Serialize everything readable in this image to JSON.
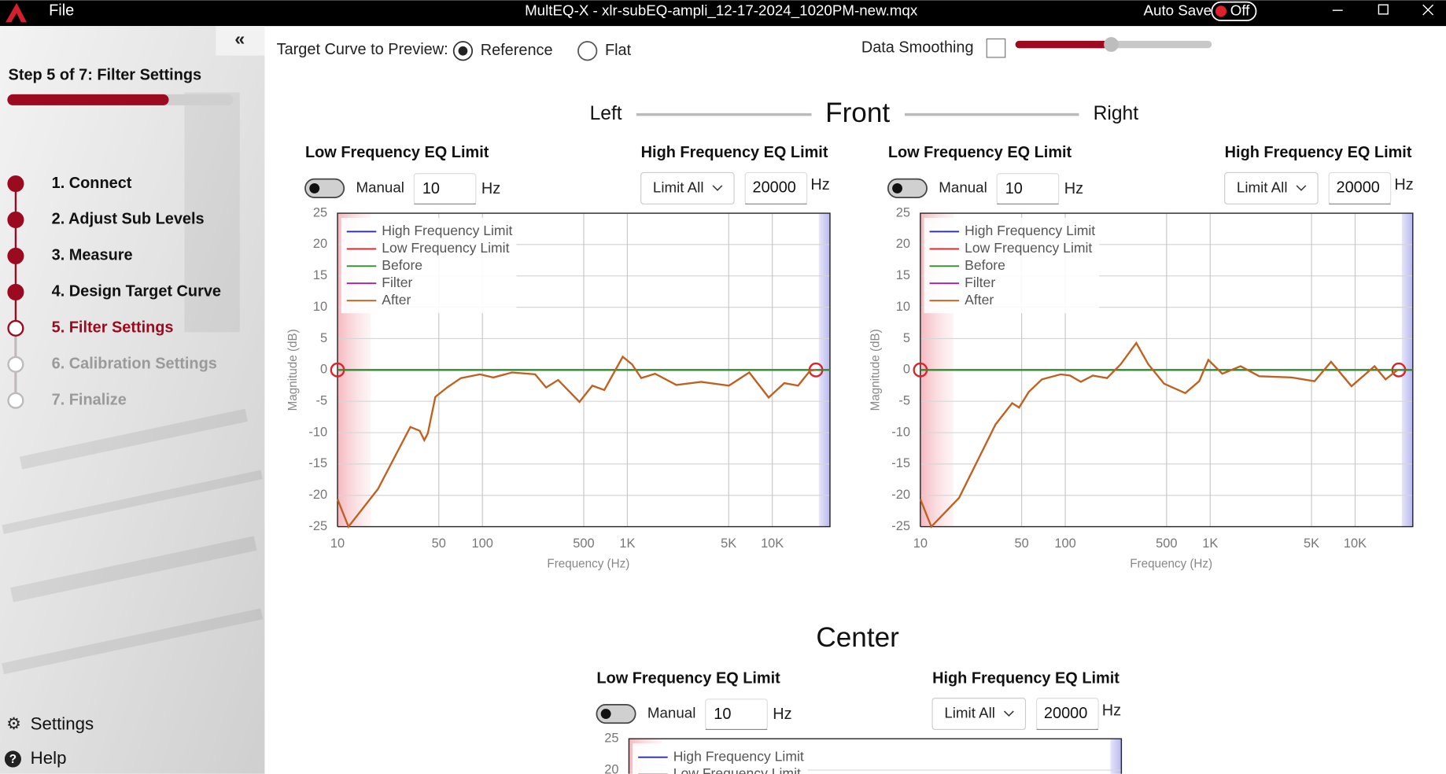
{
  "titlebar": {
    "menu": "File",
    "title": "MultEQ-X - xlr-subEQ-ampli_12-17-2024_1020PM-new.mqx",
    "auto_save": "Auto Save",
    "auto_save_state": "Off"
  },
  "sidebar": {
    "step": "Step 5 of 7: Filter Settings",
    "steps": [
      "1. Connect",
      "2. Adjust Sub Levels",
      "3. Measure",
      "4. Design Target Curve",
      "5. Filter Settings",
      "6. Calibration Settings",
      "7. Finalize"
    ],
    "settings": "Settings",
    "help": "Help"
  },
  "toolbar": {
    "target_label": "Target Curve to Preview:",
    "options": [
      "Reference",
      "Flat"
    ],
    "smoothing": "Data Smoothing"
  },
  "sections": [
    {
      "title": "Front",
      "left": "Left",
      "right": "Right"
    },
    {
      "title": "Center"
    }
  ],
  "panels": [
    {
      "low_label": "Low Frequency EQ Limit",
      "manual": "Manual",
      "low_value": "10",
      "low_unit": "Hz",
      "high_label": "High Frequency EQ Limit",
      "high_mode": "Limit All",
      "high_value": "20000",
      "high_unit": "Hz"
    },
    {
      "low_label": "Low Frequency EQ Limit",
      "manual": "Manual",
      "low_value": "10",
      "low_unit": "Hz",
      "high_label": "High Frequency EQ Limit",
      "high_mode": "Limit All",
      "high_value": "20000",
      "high_unit": "Hz"
    },
    {
      "low_label": "Low Frequency EQ Limit",
      "manual": "Manual",
      "low_value": "10",
      "low_unit": "Hz",
      "high_label": "High Frequency EQ Limit",
      "high_mode": "Limit All",
      "high_value": "20000",
      "high_unit": "Hz"
    }
  ],
  "chart_data": [
    {
      "type": "line",
      "x_label": "Frequency (Hz)",
      "y_label": "Magnitude (dB)",
      "log_x": true,
      "grid": true,
      "legend": "upper left",
      "xlim": [
        10,
        25000
      ],
      "ylim": [
        -25,
        25
      ],
      "xticks": [
        10,
        50,
        100,
        500,
        {
          "value": 1000,
          "label": "1K"
        },
        {
          "value": 5000,
          "label": "5K"
        },
        {
          "value": 10000,
          "label": "10K"
        }
      ],
      "yticks": [
        -25,
        -20,
        -15,
        -10,
        -5,
        0,
        5,
        10,
        15,
        20,
        25
      ],
      "series": [
        {
          "name": "High Frequency Limit",
          "color": "#2a2ab4",
          "marker": "circle",
          "marker_color": "#e0202a",
          "x": [
            20000
          ],
          "values": [
            0
          ]
        },
        {
          "name": "Low Frequency Limit",
          "color": "#e0202a",
          "marker": "circle",
          "marker_color": "#e0202a",
          "x": [
            10
          ],
          "values": [
            0
          ]
        },
        {
          "name": "Before",
          "color": "#2e8b2e",
          "x": [
            10,
            25000
          ],
          "values": [
            0,
            0
          ]
        },
        {
          "name": "Filter",
          "color": "#a020a0",
          "x": [],
          "values": []
        },
        {
          "name": "After",
          "color": "#c0601e",
          "x": [
            10,
            11.9,
            19,
            31.8,
            36.9,
            39.7,
            42,
            47.3,
            57,
            71,
            96,
            119,
            160,
            231,
            275,
            333,
            467,
            573,
            693,
            929,
            1076,
            1247,
            1553,
            2178,
            3236,
            5023,
            6934,
            9441,
            12106,
            15070,
            18238,
            20000
          ],
          "values": [
            -20.6,
            -25,
            -19,
            -9.1,
            -9.7,
            -11.2,
            -10.1,
            -4.3,
            -2.8,
            -1.3,
            -0.7,
            -1.2,
            -0.4,
            -0.7,
            -2.8,
            -1.6,
            -5.1,
            -2.5,
            -3.2,
            2.1,
            0.9,
            -1.3,
            -0.6,
            -2.4,
            -1.9,
            -2.5,
            -0.4,
            -4.4,
            -2.1,
            -2.5,
            -0.1,
            0
          ]
        }
      ]
    },
    {
      "type": "line",
      "x_label": "Frequency (Hz)",
      "y_label": "Magnitude (dB)",
      "log_x": true,
      "grid": true,
      "legend": "upper left",
      "xlim": [
        10,
        25000
      ],
      "ylim": [
        -25,
        25
      ],
      "xticks": [
        10,
        50,
        100,
        500,
        {
          "value": 1000,
          "label": "1K"
        },
        {
          "value": 5000,
          "label": "5K"
        },
        {
          "value": 10000,
          "label": "10K"
        }
      ],
      "yticks": [
        -25,
        -20,
        -15,
        -10,
        -5,
        0,
        5,
        10,
        15,
        20,
        25
      ],
      "series": [
        {
          "name": "High Frequency Limit",
          "color": "#2a2ab4",
          "marker": "circle",
          "marker_color": "#e0202a",
          "x": [
            20000
          ],
          "values": [
            0
          ]
        },
        {
          "name": "Low Frequency Limit",
          "color": "#e0202a",
          "marker": "circle",
          "marker_color": "#e0202a",
          "x": [
            10
          ],
          "values": [
            0
          ]
        },
        {
          "name": "Before",
          "color": "#2e8b2e",
          "x": [
            10,
            25000
          ],
          "values": [
            0,
            0
          ]
        },
        {
          "name": "Filter",
          "color": "#a020a0",
          "x": [],
          "values": []
        },
        {
          "name": "After",
          "color": "#c0601e",
          "x": [
            10,
            11.9,
            18.5,
            33,
            43,
            48,
            56,
            69,
            93,
            108,
            128,
            155,
            194,
            241,
            309,
            374,
            481,
            673,
            839,
            971,
            1211,
            1622,
            2178,
            3640,
            5248,
            6823,
            9441,
            13614,
            16218,
            19634
          ],
          "values": [
            -20.6,
            -25,
            -20.4,
            -8.7,
            -5.3,
            -6,
            -3.5,
            -1.5,
            -0.7,
            -0.9,
            -1.9,
            -0.9,
            -1.3,
            0.9,
            4.3,
            0.9,
            -2.2,
            -3.7,
            -1.8,
            1.6,
            -0.6,
            0.6,
            -1,
            -1.2,
            -1.8,
            1.3,
            -2.6,
            0.6,
            -1.5,
            0
          ]
        }
      ]
    },
    {
      "type": "line",
      "log_x": true,
      "grid": true,
      "legend": "upper left",
      "xlim": [
        10,
        25000
      ],
      "ylim": [
        -25,
        25
      ],
      "yticks": [
        20,
        25
      ],
      "series": [
        {
          "name": "High Frequency Limit",
          "color": "#2a2ab4",
          "x": [],
          "values": []
        },
        {
          "name": "Low Frequency Limit",
          "color": "#e0202a",
          "x": [],
          "values": []
        }
      ]
    }
  ]
}
